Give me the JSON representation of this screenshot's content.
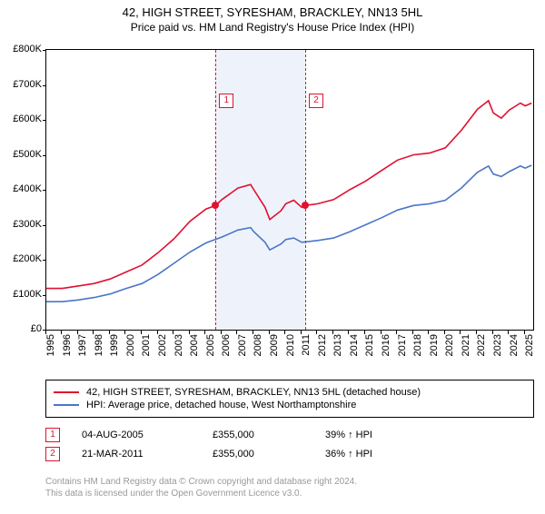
{
  "title": "42, HIGH STREET, SYRESHAM, BRACKLEY, NN13 5HL",
  "subtitle": "Price paid vs. HM Land Registry's House Price Index (HPI)",
  "chart": {
    "type": "line",
    "x_domain": [
      1995,
      2025.5
    ],
    "y_domain": [
      0,
      800000
    ],
    "y_ticks": [
      0,
      100000,
      200000,
      300000,
      400000,
      500000,
      600000,
      700000,
      800000
    ],
    "y_tick_labels": [
      "£0",
      "£100K",
      "£200K",
      "£300K",
      "£400K",
      "£500K",
      "£600K",
      "£700K",
      "£800K"
    ],
    "x_ticks": [
      1995,
      1996,
      1997,
      1998,
      1999,
      2000,
      2001,
      2002,
      2003,
      2004,
      2005,
      2006,
      2007,
      2008,
      2009,
      2010,
      2011,
      2012,
      2013,
      2014,
      2015,
      2016,
      2017,
      2018,
      2019,
      2020,
      2021,
      2022,
      2023,
      2024,
      2025
    ],
    "band": {
      "start": 2005.6,
      "end": 2011.22
    },
    "vlines": [
      2005.6,
      2011.22
    ],
    "colors": {
      "price": "#e01030",
      "hpi": "#4a76c7",
      "band": "#eef3fb",
      "axis": "#000000"
    },
    "line_width": 1.6,
    "series": {
      "price": [
        [
          1995,
          118000
        ],
        [
          1996,
          118000
        ],
        [
          1997,
          125000
        ],
        [
          1998,
          132000
        ],
        [
          1999,
          145000
        ],
        [
          2000,
          165000
        ],
        [
          2001,
          185000
        ],
        [
          2002,
          220000
        ],
        [
          2003,
          260000
        ],
        [
          2004,
          310000
        ],
        [
          2005,
          345000
        ],
        [
          2005.6,
          355000
        ],
        [
          2006,
          372000
        ],
        [
          2007,
          405000
        ],
        [
          2007.8,
          415000
        ],
        [
          2008,
          400000
        ],
        [
          2008.7,
          350000
        ],
        [
          2009,
          315000
        ],
        [
          2009.7,
          340000
        ],
        [
          2010,
          360000
        ],
        [
          2010.5,
          370000
        ],
        [
          2011,
          350000
        ],
        [
          2011.22,
          355000
        ],
        [
          2012,
          360000
        ],
        [
          2013,
          372000
        ],
        [
          2014,
          400000
        ],
        [
          2015,
          425000
        ],
        [
          2016,
          455000
        ],
        [
          2017,
          485000
        ],
        [
          2018,
          500000
        ],
        [
          2019,
          505000
        ],
        [
          2020,
          520000
        ],
        [
          2021,
          570000
        ],
        [
          2022,
          630000
        ],
        [
          2022.7,
          655000
        ],
        [
          2023,
          620000
        ],
        [
          2023.5,
          605000
        ],
        [
          2024,
          628000
        ],
        [
          2024.7,
          648000
        ],
        [
          2025,
          640000
        ],
        [
          2025.4,
          648000
        ]
      ],
      "hpi": [
        [
          1995,
          80000
        ],
        [
          1996,
          80000
        ],
        [
          1997,
          85000
        ],
        [
          1998,
          92000
        ],
        [
          1999,
          102000
        ],
        [
          2000,
          118000
        ],
        [
          2001,
          132000
        ],
        [
          2002,
          158000
        ],
        [
          2003,
          190000
        ],
        [
          2004,
          222000
        ],
        [
          2005,
          248000
        ],
        [
          2006,
          265000
        ],
        [
          2007,
          285000
        ],
        [
          2007.8,
          292000
        ],
        [
          2008,
          280000
        ],
        [
          2008.7,
          250000
        ],
        [
          2009,
          228000
        ],
        [
          2009.7,
          245000
        ],
        [
          2010,
          258000
        ],
        [
          2010.5,
          262000
        ],
        [
          2011,
          250000
        ],
        [
          2012,
          255000
        ],
        [
          2013,
          262000
        ],
        [
          2014,
          280000
        ],
        [
          2015,
          300000
        ],
        [
          2016,
          320000
        ],
        [
          2017,
          342000
        ],
        [
          2018,
          355000
        ],
        [
          2019,
          360000
        ],
        [
          2020,
          370000
        ],
        [
          2021,
          405000
        ],
        [
          2022,
          450000
        ],
        [
          2022.7,
          468000
        ],
        [
          2023,
          445000
        ],
        [
          2023.5,
          438000
        ],
        [
          2024,
          452000
        ],
        [
          2024.7,
          468000
        ],
        [
          2025,
          462000
        ],
        [
          2025.4,
          470000
        ]
      ]
    },
    "markers": [
      {
        "idx": "1",
        "x": 2005.6,
        "y": 355000,
        "box_y": 48
      },
      {
        "idx": "2",
        "x": 2011.22,
        "y": 355000,
        "box_y": 48
      }
    ]
  },
  "legend": {
    "price_label": "42, HIGH STREET, SYRESHAM, BRACKLEY, NN13 5HL (detached house)",
    "hpi_label": "HPI: Average price, detached house, West Northamptonshire"
  },
  "sales": [
    {
      "idx": "1",
      "date": "04-AUG-2005",
      "price": "£355,000",
      "hpi": "39% ↑ HPI"
    },
    {
      "idx": "2",
      "date": "21-MAR-2011",
      "price": "£355,000",
      "hpi": "36% ↑ HPI"
    }
  ],
  "footer": {
    "l1": "Contains HM Land Registry data © Crown copyright and database right 2024.",
    "l2": "This data is licensed under the Open Government Licence v3.0."
  }
}
